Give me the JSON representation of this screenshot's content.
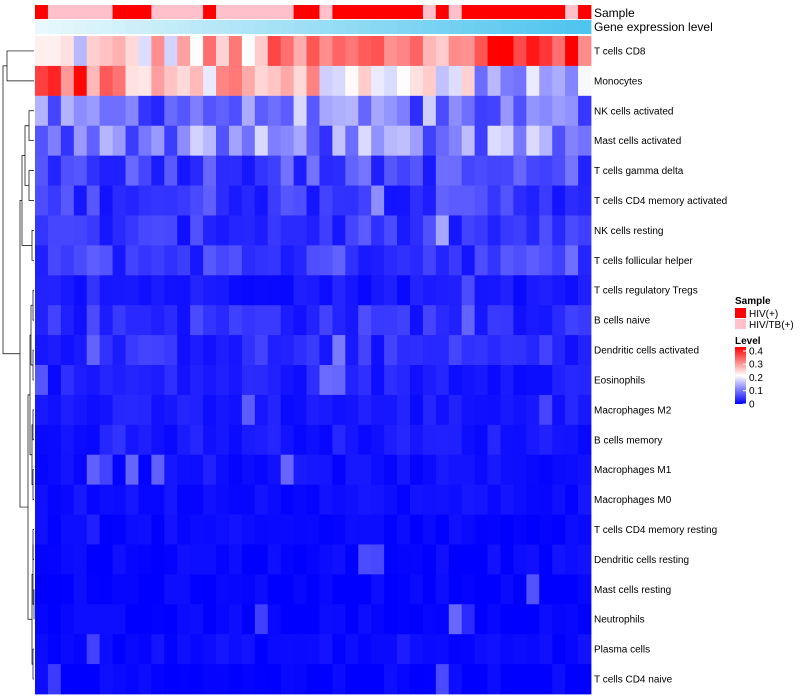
{
  "chart_data": {
    "type": "heatmap",
    "annotation_labels": [
      "Sample",
      "Gene expression level"
    ],
    "rows": [
      "T cells CD8",
      "Monocytes",
      "NK cells activated",
      "Mast cells activated",
      "T cells gamma delta",
      "T cells CD4 memory activated",
      "NK cells resting",
      "T cells follicular helper",
      "T cells regulatory  Tregs",
      "B cells naive",
      "Dendritic cells activated",
      "Eosinophils",
      "Macrophages M2",
      "B cells memory",
      "Macrophages M1",
      "Macrophages M0",
      "T cells CD4 memory resting",
      "Dendritic cells resting",
      "Mast cells resting",
      "Neutrophils",
      "Plasma cells",
      "T cells CD4 naive"
    ],
    "sample_groups": [
      "HIV(+)",
      "HIV/TB(+)",
      "HIV/TB(+)",
      "HIV/TB(+)",
      "HIV/TB(+)",
      "HIV/TB(+)",
      "HIV(+)",
      "HIV(+)",
      "HIV(+)",
      "HIV/TB(+)",
      "HIV/TB(+)",
      "HIV/TB(+)",
      "HIV/TB(+)",
      "HIV(+)",
      "HIV/TB(+)",
      "HIV/TB(+)",
      "HIV/TB(+)",
      "HIV/TB(+)",
      "HIV/TB(+)",
      "HIV/TB(+)",
      "HIV(+)",
      "HIV(+)",
      "HIV/TB(+)",
      "HIV(+)",
      "HIV(+)",
      "HIV(+)",
      "HIV(+)",
      "HIV(+)",
      "HIV(+)",
      "HIV(+)",
      "HIV/TB(+)",
      "HIV(+)",
      "HIV/TB(+)",
      "HIV(+)",
      "HIV(+)",
      "HIV(+)",
      "HIV(+)",
      "HIV(+)",
      "HIV(+)",
      "HIV(+)",
      "HIV(+)",
      "HIV/TB(+)",
      "HIV(+)"
    ],
    "expression_level_range": [
      0,
      1
    ],
    "row_means": [
      0.36,
      0.25,
      0.09,
      0.11,
      0.06,
      0.05,
      0.04,
      0.05,
      0.02,
      0.04,
      0.035,
      0.025,
      0.02,
      0.02,
      0.012,
      0.012,
      0.006,
      0.006,
      0.002,
      0.002,
      0.008,
      0.003
    ],
    "col_trend": {
      "T cells CD8": [
        0.2,
        0.4
      ],
      "Monocytes": [
        0.35,
        0.14
      ]
    },
    "legends": {
      "sample": {
        "title": "Sample",
        "items": [
          {
            "label": "HIV(+)",
            "color": "#ff0000"
          },
          {
            "label": "HIV/TB(+)",
            "color": "#ffc0cb"
          }
        ]
      },
      "level": {
        "title": "Level",
        "ticks": [
          "0.4",
          "0.3",
          "0.2",
          "0.1",
          "0"
        ],
        "range": [
          0,
          0.43
        ]
      }
    },
    "colors": {
      "low": "#0000ff",
      "mid": "#ffffff",
      "high": "#ff0000",
      "expr_start": "#e8f8fc",
      "expr_end": "#4ec4ee",
      "dendrogram": "#000000"
    }
  }
}
